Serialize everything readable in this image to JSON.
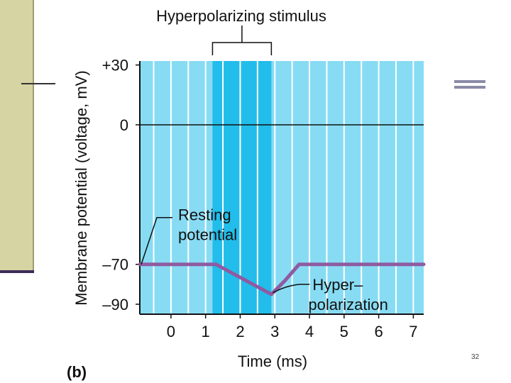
{
  "slide_number": "32",
  "chart_data": {
    "type": "line",
    "panel_label": "(b)",
    "title": "Hyperpolarizing stimulus",
    "xlabel": "Time (ms)",
    "ylabel": "Membrane potential (voltage, mV)",
    "xlim": [
      -0.9,
      7.3
    ],
    "ylim": [
      -95,
      32
    ],
    "x_ticks": [
      0,
      1,
      2,
      3,
      4,
      5,
      6,
      7
    ],
    "x_tick_labels": [
      "0",
      "1",
      "2",
      "3",
      "4",
      "5",
      "6",
      "7"
    ],
    "y_ticks": [
      30,
      0,
      -70,
      -90
    ],
    "y_tick_labels": [
      "+30",
      "0",
      "–70",
      "–90"
    ],
    "zero_line": 0,
    "stimulus": {
      "start": 1.2,
      "end": 2.9
    },
    "series": [
      {
        "name": "Membrane potential",
        "color": "#8f5ba1",
        "x": [
          -0.9,
          1.3,
          2.9,
          3.3,
          3.7,
          7.3
        ],
        "y": [
          -70,
          -70,
          -85,
          -78,
          -70,
          -70
        ]
      }
    ],
    "annotations": [
      {
        "id": "resting",
        "lines": [
          "Resting",
          "potential"
        ],
        "x": -0.9,
        "y": -70
      },
      {
        "id": "hyper",
        "lines": [
          "Hyper–",
          "polarization"
        ],
        "x": 2.9,
        "y": -85
      }
    ],
    "colors": {
      "plot_background": "#87dcf4",
      "stimulus_band": "#22bdea",
      "grid": "#ffffff",
      "axis": "#111111"
    }
  }
}
